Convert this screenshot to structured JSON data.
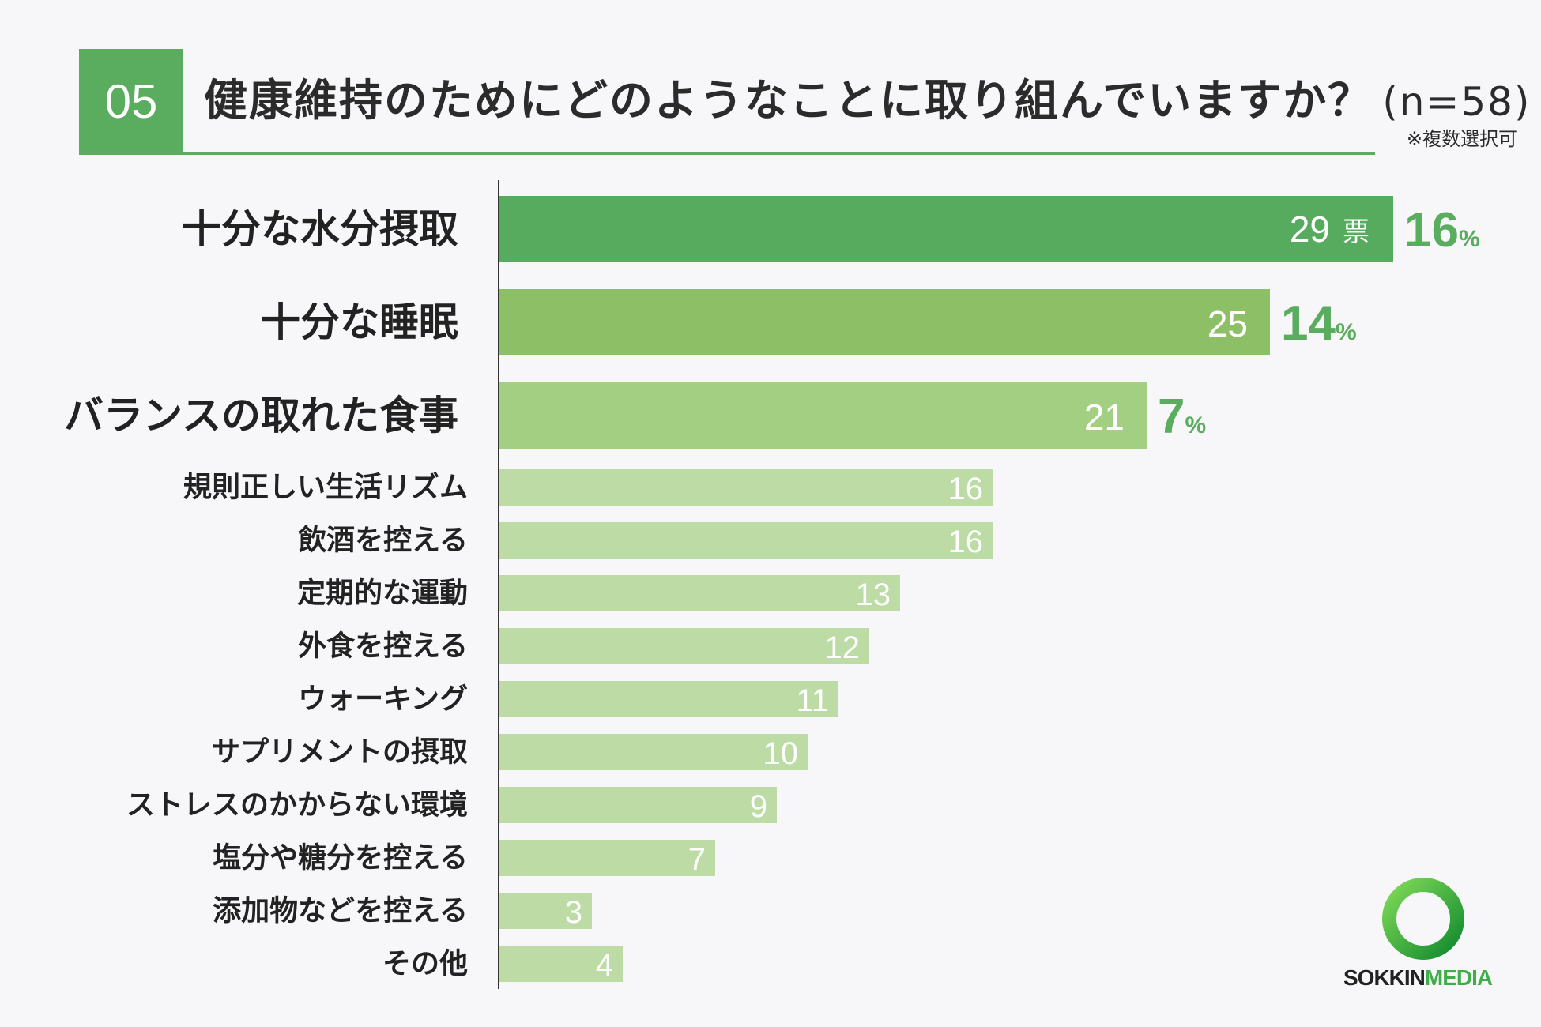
{
  "header": {
    "badge": "05",
    "title": "健康維持のためにどのようなことに取り組んでいますか？",
    "sample": "(n=58)",
    "note": "※複数選択可"
  },
  "chart_data": {
    "type": "bar",
    "orientation": "horizontal",
    "categories": [
      "十分な水分摂取",
      "十分な睡眠",
      "バランスの取れた食事",
      "規則正しい生活リズム",
      "飲酒を控える",
      "定期的な運動",
      "外食を控える",
      "ウォーキング",
      "サプリメントの摂取",
      "ストレスのかからない環境",
      "塩分や糖分を控える",
      "添加物などを控える",
      "その他"
    ],
    "values": [
      29,
      25,
      21,
      16,
      16,
      13,
      12,
      11,
      10,
      9,
      7,
      3,
      4
    ],
    "value_unit_first": "票",
    "percent_labels": [
      "16",
      "14",
      "7"
    ],
    "percent_symbol": "%",
    "colors": [
      "#56ab5f",
      "#8dc066",
      "#a3cf82",
      "#bddca5"
    ],
    "xlim": [
      0,
      29
    ],
    "grid": false
  },
  "logo": {
    "part1": "SOKKIN",
    "part2": "MEDIA"
  }
}
